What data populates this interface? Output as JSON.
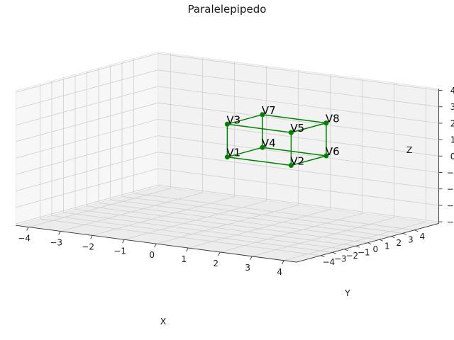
{
  "chart_data": {
    "type": "scatter",
    "projection": "3d",
    "title": "Paralelepipedo",
    "xlabel": "X",
    "ylabel": "Y",
    "zlabel": "Z",
    "xlim": [
      -4,
      4
    ],
    "ylim": [
      -4,
      4
    ],
    "zlim": [
      -4,
      4
    ],
    "ticks": {
      "x": [
        "−4",
        "−3",
        "−2",
        "−1",
        "0",
        "1",
        "2",
        "3",
        "4"
      ],
      "y": [
        "−4",
        "−3",
        "−2",
        "−1",
        "0",
        "1",
        "2",
        "3",
        "4"
      ],
      "z": [
        "−4",
        "−3",
        "−2",
        "−1",
        "0",
        "1",
        "2",
        "3",
        "4"
      ]
    },
    "grid": true,
    "color": "#008000",
    "vertices": [
      {
        "label": "V1",
        "x": 0,
        "y": 0,
        "z": 0
      },
      {
        "label": "V2",
        "x": 2,
        "y": 0,
        "z": 0
      },
      {
        "label": "V3",
        "x": 0,
        "y": 0,
        "z": 2
      },
      {
        "label": "V4",
        "x": 0,
        "y": 3,
        "z": 0
      },
      {
        "label": "V5",
        "x": 2,
        "y": 0,
        "z": 2
      },
      {
        "label": "V6",
        "x": 2,
        "y": 3,
        "z": 0
      },
      {
        "label": "V7",
        "x": 0,
        "y": 3,
        "z": 2
      },
      {
        "label": "V8",
        "x": 2,
        "y": 3,
        "z": 2
      }
    ],
    "edges": [
      [
        "V1",
        "V2"
      ],
      [
        "V1",
        "V3"
      ],
      [
        "V1",
        "V4"
      ],
      [
        "V2",
        "V5"
      ],
      [
        "V2",
        "V6"
      ],
      [
        "V3",
        "V5"
      ],
      [
        "V3",
        "V7"
      ],
      [
        "V4",
        "V6"
      ],
      [
        "V4",
        "V7"
      ],
      [
        "V5",
        "V8"
      ],
      [
        "V6",
        "V8"
      ],
      [
        "V7",
        "V8"
      ]
    ]
  }
}
